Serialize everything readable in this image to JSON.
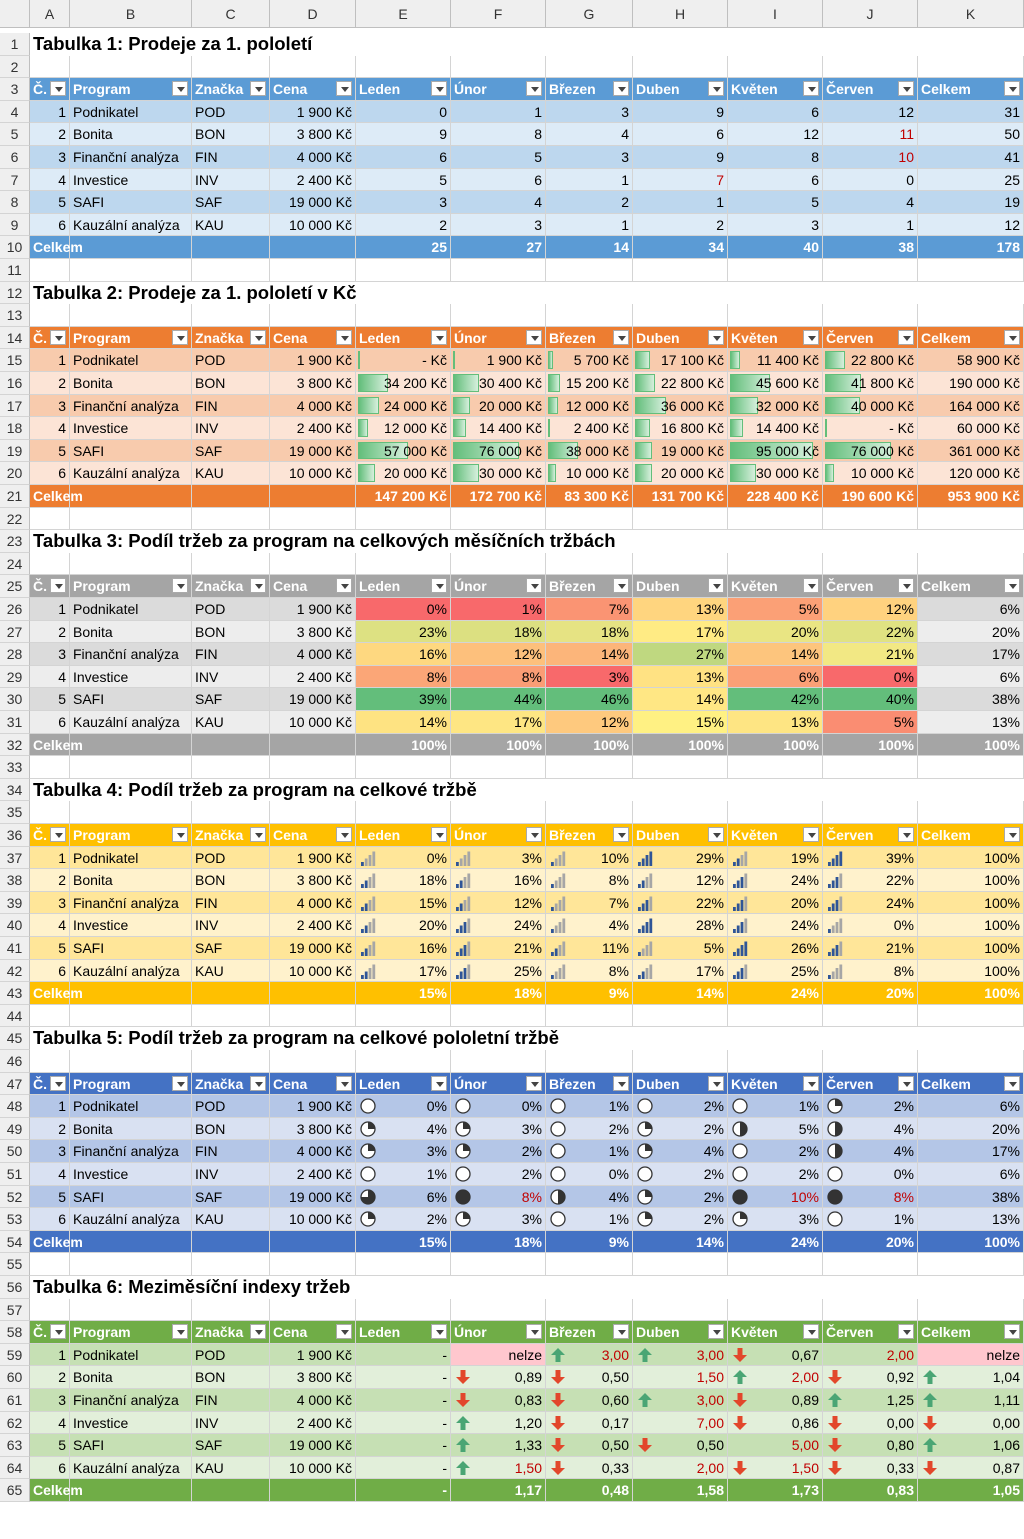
{
  "columns": [
    "",
    "A",
    "B",
    "C",
    "D",
    "E",
    "F",
    "G",
    "H",
    "I",
    "J",
    "K"
  ],
  "headers": [
    "Č.",
    "Program",
    "Značka",
    "Cena",
    "Leden",
    "Únor",
    "Březen",
    "Duben",
    "Květen",
    "Červen",
    "Celkem"
  ],
  "programs": [
    {
      "no": "1",
      "name": "Podnikatel",
      "code": "POD",
      "price": "1 900 Kč"
    },
    {
      "no": "2",
      "name": "Bonita",
      "code": "BON",
      "price": "3 800 Kč"
    },
    {
      "no": "3",
      "name": "Finanční analýza",
      "code": "FIN",
      "price": "4 000 Kč"
    },
    {
      "no": "4",
      "name": "Investice",
      "code": "INV",
      "price": "2 400 Kč"
    },
    {
      "no": "5",
      "name": "SAFI",
      "code": "SAF",
      "price": "19 000 Kč"
    },
    {
      "no": "6",
      "name": "Kauzální analýza",
      "code": "KAU",
      "price": "10 000 Kč"
    }
  ],
  "total_label": "Celkem",
  "tables": [
    {
      "title": "Tabulka 1: Prodeje za 1. pololetí",
      "color": "#5b9bd5",
      "band1": "#bdd7ee",
      "band2": "#ddebf7",
      "rows": [
        [
          "0",
          "1",
          "3",
          "9",
          "6",
          "12",
          "31"
        ],
        [
          "9",
          "8",
          "4",
          "6",
          "12",
          "11",
          "50"
        ],
        [
          "6",
          "5",
          "3",
          "9",
          "8",
          "10",
          "41"
        ],
        [
          "5",
          "6",
          "1",
          "7",
          "6",
          "0",
          "25"
        ],
        [
          "3",
          "4",
          "2",
          "1",
          "5",
          "4",
          "19"
        ],
        [
          "2",
          "3",
          "1",
          "2",
          "3",
          "1",
          "12"
        ]
      ],
      "red_cells": [
        [
          1,
          5
        ],
        [
          2,
          5
        ],
        [
          3,
          3
        ]
      ],
      "total": [
        "25",
        "27",
        "14",
        "34",
        "40",
        "38",
        "178"
      ]
    },
    {
      "title": "Tabulka 2: Prodeje za 1. pololetí v Kč",
      "color": "#ed7d31",
      "band1": "#f8cbad",
      "band2": "#fce4d6",
      "rows": [
        [
          "-     Kč",
          "1 900 Kč",
          "5 700 Kč",
          "17 100 Kč",
          "11 400 Kč",
          "22 800 Kč",
          "58 900 Kč"
        ],
        [
          "34 200 Kč",
          "30 400 Kč",
          "15 200 Kč",
          "22 800 Kč",
          "45 600 Kč",
          "41 800 Kč",
          "190 000 Kč"
        ],
        [
          "24 000 Kč",
          "20 000 Kč",
          "12 000 Kč",
          "36 000 Kč",
          "32 000 Kč",
          "40 000 Kč",
          "164 000 Kč"
        ],
        [
          "12 000 Kč",
          "14 400 Kč",
          "2 400 Kč",
          "16 800 Kč",
          "14 400 Kč",
          "-     Kč",
          "60 000 Kč"
        ],
        [
          "57 000 Kč",
          "76 000 Kč",
          "38 000 Kč",
          "19 000 Kč",
          "95 000 Kč",
          "76 000 Kč",
          "361 000 Kč"
        ],
        [
          "20 000 Kč",
          "30 000 Kč",
          "10 000 Kč",
          "20 000 Kč",
          "30 000 Kč",
          "10 000 Kč",
          "120 000 Kč"
        ]
      ],
      "bar_values": [
        [
          0,
          1900,
          5700,
          17100,
          11400,
          22800
        ],
        [
          34200,
          30400,
          15200,
          22800,
          45600,
          41800
        ],
        [
          24000,
          20000,
          12000,
          36000,
          32000,
          40000
        ],
        [
          12000,
          14400,
          2400,
          16800,
          14400,
          0
        ],
        [
          57000,
          76000,
          38000,
          19000,
          95000,
          76000
        ],
        [
          20000,
          30000,
          10000,
          20000,
          30000,
          10000
        ]
      ],
      "total": [
        "147 200 Kč",
        "172 700 Kč",
        "83 300 Kč",
        "131 700 Kč",
        "228 400 Kč",
        "190 600 Kč",
        "953 900 Kč"
      ]
    },
    {
      "title": "Tabulka 3: Podíl tržeb za program na celkových měsíčních tržbách",
      "color": "#a5a5a5",
      "band1": "#dbdbdb",
      "band2": "#ededed",
      "rows": [
        [
          "0%",
          "1%",
          "7%",
          "13%",
          "5%",
          "12%",
          "6%"
        ],
        [
          "23%",
          "18%",
          "18%",
          "17%",
          "20%",
          "22%",
          "20%"
        ],
        [
          "16%",
          "12%",
          "14%",
          "27%",
          "14%",
          "21%",
          "17%"
        ],
        [
          "8%",
          "8%",
          "3%",
          "13%",
          "6%",
          "0%",
          "6%"
        ],
        [
          "39%",
          "44%",
          "46%",
          "14%",
          "42%",
          "40%",
          "38%"
        ],
        [
          "14%",
          "17%",
          "12%",
          "15%",
          "13%",
          "5%",
          "13%"
        ]
      ],
      "heat_colors": [
        [
          "#f8696b",
          "#f8696b",
          "#fa9473",
          "#ffd57f",
          "#fba076",
          "#ffd27f"
        ],
        [
          "#dde182",
          "#dce081",
          "#e6e383",
          "#ffeb84",
          "#e9e583",
          "#e0e282"
        ],
        [
          "#fed880",
          "#fdc07c",
          "#fcb57a",
          "#bfd880",
          "#fdc57d",
          "#f2e884"
        ],
        [
          "#fba677",
          "#fb9d75",
          "#f8696b",
          "#ffe283",
          "#fba076",
          "#f8696b"
        ],
        [
          "#63be7b",
          "#63be7b",
          "#63be7b",
          "#ffe784",
          "#63be7b",
          "#63be7b"
        ],
        [
          "#fee382",
          "#fee683",
          "#fec97e",
          "#fff183",
          "#fee583",
          "#fa8d72"
        ]
      ],
      "total": [
        "100%",
        "100%",
        "100%",
        "100%",
        "100%",
        "100%",
        "100%"
      ]
    },
    {
      "title": "Tabulka 4: Podíl tržeb za program na celkové tržbě",
      "color": "#ffc000",
      "band1": "#ffe699",
      "band2": "#fff2cc",
      "rows": [
        [
          "0%",
          "3%",
          "10%",
          "29%",
          "19%",
          "39%",
          "100%"
        ],
        [
          "18%",
          "16%",
          "8%",
          "12%",
          "24%",
          "22%",
          "100%"
        ],
        [
          "15%",
          "12%",
          "7%",
          "22%",
          "20%",
          "24%",
          "100%"
        ],
        [
          "20%",
          "24%",
          "4%",
          "28%",
          "24%",
          "0%",
          "100%"
        ],
        [
          "16%",
          "21%",
          "11%",
          "5%",
          "26%",
          "21%",
          "100%"
        ],
        [
          "17%",
          "25%",
          "8%",
          "17%",
          "25%",
          "8%",
          "100%"
        ]
      ],
      "signal_levels": [
        [
          1,
          1,
          1,
          4,
          2,
          4
        ],
        [
          2,
          2,
          1,
          2,
          3,
          3
        ],
        [
          2,
          2,
          1,
          3,
          3,
          3
        ],
        [
          2,
          3,
          1,
          4,
          3,
          1
        ],
        [
          2,
          3,
          2,
          1,
          4,
          3
        ],
        [
          2,
          3,
          1,
          2,
          3,
          1
        ]
      ],
      "total": [
        "15%",
        "18%",
        "9%",
        "14%",
        "24%",
        "20%",
        "100%"
      ]
    },
    {
      "title": "Tabulka 5: Podíl tržeb za program na celkové pololetní tržbě",
      "color": "#4472c4",
      "band1": "#b4c6e7",
      "band2": "#d9e1f2",
      "rows": [
        [
          "0%",
          "0%",
          "1%",
          "2%",
          "1%",
          "2%",
          "6%"
        ],
        [
          "4%",
          "3%",
          "2%",
          "2%",
          "5%",
          "4%",
          "20%"
        ],
        [
          "3%",
          "2%",
          "1%",
          "4%",
          "2%",
          "4%",
          "17%"
        ],
        [
          "1%",
          "2%",
          "0%",
          "2%",
          "2%",
          "0%",
          "6%"
        ],
        [
          "6%",
          "8%",
          "4%",
          "2%",
          "10%",
          "8%",
          "38%"
        ],
        [
          "2%",
          "3%",
          "1%",
          "2%",
          "3%",
          "1%",
          "13%"
        ]
      ],
      "harvey_quarters": [
        [
          0,
          0,
          0,
          0,
          0,
          1
        ],
        [
          1,
          1,
          0,
          1,
          2,
          2
        ],
        [
          1,
          1,
          0,
          1,
          0,
          2
        ],
        [
          0,
          0,
          0,
          0,
          0,
          0
        ],
        [
          3,
          4,
          2,
          1,
          4,
          4
        ],
        [
          1,
          1,
          0,
          1,
          1,
          0
        ]
      ],
      "red_cells": [
        [
          4,
          1
        ],
        [
          4,
          4
        ],
        [
          4,
          5
        ]
      ],
      "total": [
        "15%",
        "18%",
        "9%",
        "14%",
        "24%",
        "20%",
        "100%"
      ]
    },
    {
      "title": "Tabulka 6: Meziměsíční indexy tržeb",
      "color": "#70ad47",
      "band1": "#c6e0b4",
      "band2": "#e2efda",
      "rows": [
        [
          "-",
          "nelze",
          "3,00",
          "3,00",
          "0,67",
          "2,00",
          "nelze"
        ],
        [
          "-",
          "0,89",
          "0,50",
          "1,50",
          "2,00",
          "0,92",
          "1,04"
        ],
        [
          "-",
          "0,83",
          "0,60",
          "3,00",
          "0,89",
          "1,25",
          "1,11"
        ],
        [
          "-",
          "1,20",
          "0,17",
          "7,00",
          "0,86",
          "0,00",
          "0,00"
        ],
        [
          "-",
          "1,33",
          "0,50",
          "0,50",
          "5,00",
          "0,80",
          "1,06"
        ],
        [
          "-",
          "1,50",
          "0,33",
          "2,00",
          "1,50",
          "0,33",
          "0,87"
        ]
      ],
      "arrows": [
        [
          "",
          "x",
          "up",
          "up",
          "down",
          "",
          "x"
        ],
        [
          "",
          "down",
          "down",
          "",
          "up",
          "down",
          "up"
        ],
        [
          "",
          "down",
          "down",
          "up",
          "down",
          "up",
          "up"
        ],
        [
          "",
          "up",
          "down",
          "",
          "down",
          "down",
          "down"
        ],
        [
          "",
          "up",
          "down",
          "down",
          "",
          "down",
          "up"
        ],
        [
          "",
          "up",
          "down",
          "",
          "down",
          "down",
          "down"
        ]
      ],
      "red_cells": [
        [
          0,
          2
        ],
        [
          0,
          3
        ],
        [
          0,
          5
        ],
        [
          1,
          3
        ],
        [
          1,
          4
        ],
        [
          2,
          3
        ],
        [
          3,
          3
        ],
        [
          4,
          4
        ],
        [
          5,
          1
        ],
        [
          5,
          3
        ],
        [
          5,
          4
        ]
      ],
      "total": [
        "-",
        "1,17",
        "0,48",
        "1,58",
        "1,73",
        "0,83",
        "1,05"
      ]
    }
  ]
}
